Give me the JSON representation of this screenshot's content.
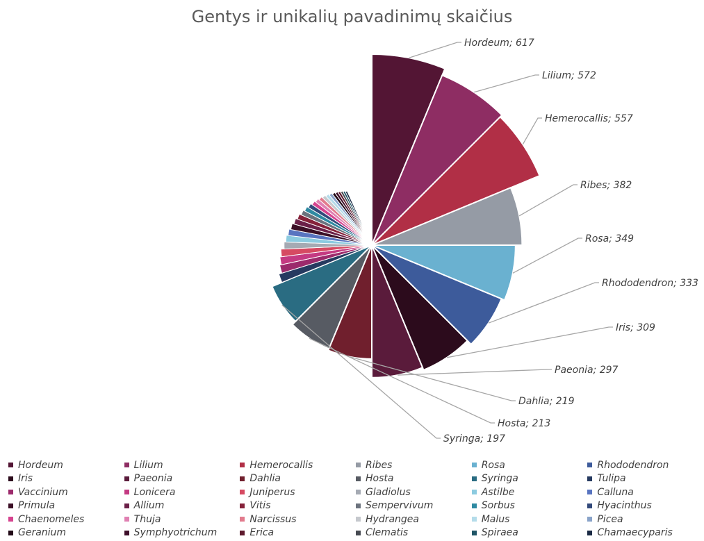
{
  "chart_data": {
    "type": "pie",
    "title": "Gentys ir unikalių pavadinimų skaičius",
    "slices": [
      {
        "label": "Hordeum",
        "value": 617,
        "color": "#531534"
      },
      {
        "label": "Lilium",
        "value": 572,
        "color": "#8e2d63"
      },
      {
        "label": "Hemerocallis",
        "value": 557,
        "color": "#b12f46"
      },
      {
        "label": "Ribes",
        "value": 382,
        "color": "#959ba5"
      },
      {
        "label": "Rosa",
        "value": 349,
        "color": "#6ab1d0"
      },
      {
        "label": "Rhododendron",
        "value": 333,
        "color": "#3d5b9b"
      },
      {
        "label": "Iris",
        "value": 309,
        "color": "#2c0b1c"
      },
      {
        "label": "Paeonia",
        "value": 297,
        "color": "#5a1b3b"
      },
      {
        "label": "Dahlia",
        "value": 219,
        "color": "#701f2d"
      },
      {
        "label": "Hosta",
        "value": 213,
        "color": "#575b63"
      },
      {
        "label": "Syringa",
        "value": 197,
        "color": "#2a6c82"
      },
      {
        "label": "Tulipa",
        "value": 160,
        "color": "#263a60"
      },
      {
        "label": "Vaccinium",
        "value": 150,
        "color": "#9c2a6c"
      },
      {
        "label": "Lonicera",
        "value": 145,
        "color": "#c43a82"
      },
      {
        "label": "Juniperus",
        "value": 140,
        "color": "#d64a62"
      },
      {
        "label": "Gladiolus",
        "value": 130,
        "color": "#a5aab3"
      },
      {
        "label": "Astilbe",
        "value": 125,
        "color": "#8ccbe0"
      },
      {
        "label": "Calluna",
        "value": 120,
        "color": "#5874c0"
      },
      {
        "label": "Primula",
        "value": 115,
        "color": "#3b0f26"
      },
      {
        "label": "Allium",
        "value": 110,
        "color": "#6b2048"
      },
      {
        "label": "Vitis",
        "value": 105,
        "color": "#86223a"
      },
      {
        "label": "Sempervivum",
        "value": 100,
        "color": "#6c737e"
      },
      {
        "label": "Sorbus",
        "value": 96,
        "color": "#2f8aa2"
      },
      {
        "label": "Hyacinthus",
        "value": 92,
        "color": "#32497a"
      },
      {
        "label": "Chaenomeles",
        "value": 88,
        "color": "#d6438f"
      },
      {
        "label": "Thuja",
        "value": 85,
        "color": "#e080b2"
      },
      {
        "label": "Narcissus",
        "value": 82,
        "color": "#e27b8d"
      },
      {
        "label": "Hydrangea",
        "value": 79,
        "color": "#c5c8cd"
      },
      {
        "label": "Malus",
        "value": 76,
        "color": "#b4dcea"
      },
      {
        "label": "Picea",
        "value": 73,
        "color": "#89a3c9"
      },
      {
        "label": "Geranium",
        "value": 70,
        "color": "#220a17"
      },
      {
        "label": "Symphyotrichum",
        "value": 68,
        "color": "#3e0f2a"
      },
      {
        "label": "Erica",
        "value": 66,
        "color": "#5e1a2d"
      },
      {
        "label": "Clematis",
        "value": 64,
        "color": "#464a51"
      },
      {
        "label": "Spiraea",
        "value": 62,
        "color": "#1f5566"
      },
      {
        "label": "Chamaecyparis",
        "value": 60,
        "color": "#1a2a44"
      }
    ],
    "visible_labels": [
      "Hordeum",
      "Lilium",
      "Hemerocallis",
      "Ribes",
      "Rosa",
      "Rhododendron",
      "Iris",
      "Paeonia",
      "Dahlia",
      "Hosta",
      "Syringa"
    ]
  }
}
